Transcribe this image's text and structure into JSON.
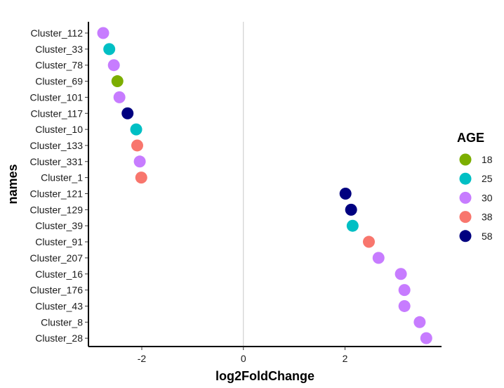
{
  "chart_data": {
    "type": "scatter",
    "xlabel": "log2FoldChange",
    "ylabel": "names",
    "xlim": [
      -3.05,
      3.9
    ],
    "xticks": [
      -2,
      0,
      2
    ],
    "xtick_labels": [
      "-2",
      "0",
      "2"
    ],
    "categories": [
      "Cluster_112",
      "Cluster_33",
      "Cluster_78",
      "Cluster_69",
      "Cluster_101",
      "Cluster_117",
      "Cluster_10",
      "Cluster_133",
      "Cluster_331",
      "Cluster_1",
      "Cluster_121",
      "Cluster_129",
      "Cluster_39",
      "Cluster_91",
      "Cluster_207",
      "Cluster_16",
      "Cluster_176",
      "Cluster_43",
      "Cluster_8",
      "Cluster_28"
    ],
    "points": [
      {
        "name": "Cluster_112",
        "x": -2.76,
        "age": "30"
      },
      {
        "name": "Cluster_33",
        "x": -2.64,
        "age": "25"
      },
      {
        "name": "Cluster_78",
        "x": -2.55,
        "age": "30"
      },
      {
        "name": "Cluster_69",
        "x": -2.48,
        "age": "18"
      },
      {
        "name": "Cluster_101",
        "x": -2.44,
        "age": "30"
      },
      {
        "name": "Cluster_117",
        "x": -2.28,
        "age": "58"
      },
      {
        "name": "Cluster_10",
        "x": -2.11,
        "age": "25"
      },
      {
        "name": "Cluster_133",
        "x": -2.09,
        "age": "38"
      },
      {
        "name": "Cluster_331",
        "x": -2.04,
        "age": "30"
      },
      {
        "name": "Cluster_1",
        "x": -2.01,
        "age": "38"
      },
      {
        "name": "Cluster_121",
        "x": 2.01,
        "age": "58"
      },
      {
        "name": "Cluster_129",
        "x": 2.12,
        "age": "58"
      },
      {
        "name": "Cluster_39",
        "x": 2.15,
        "age": "25"
      },
      {
        "name": "Cluster_91",
        "x": 2.47,
        "age": "38"
      },
      {
        "name": "Cluster_207",
        "x": 2.66,
        "age": "30"
      },
      {
        "name": "Cluster_16",
        "x": 3.1,
        "age": "30"
      },
      {
        "name": "Cluster_176",
        "x": 3.17,
        "age": "30"
      },
      {
        "name": "Cluster_43",
        "x": 3.17,
        "age": "30"
      },
      {
        "name": "Cluster_8",
        "x": 3.47,
        "age": "30"
      },
      {
        "name": "Cluster_28",
        "x": 3.6,
        "age": "30"
      }
    ],
    "vline_x": 0,
    "grid": false,
    "legend": {
      "title": "AGE",
      "placement": "right",
      "entries": [
        {
          "label": "18",
          "color": "#7CAE00"
        },
        {
          "label": "25",
          "color": "#00BFC4"
        },
        {
          "label": "30",
          "color": "#C77CFF"
        },
        {
          "label": "38",
          "color": "#F8766D"
        },
        {
          "label": "58",
          "color": "#000080"
        }
      ]
    }
  }
}
